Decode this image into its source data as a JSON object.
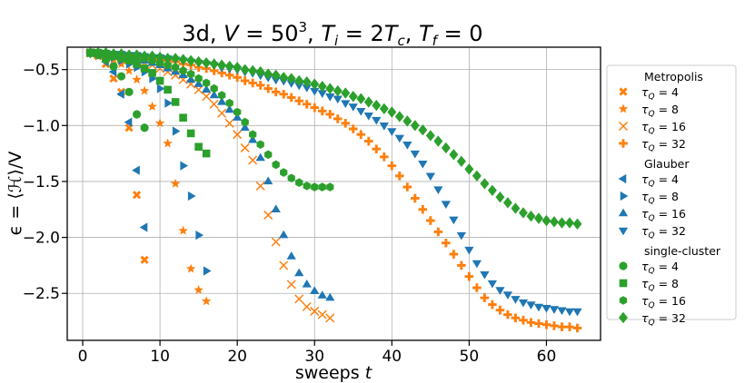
{
  "colors": {
    "metropolis": "#ff7f0e",
    "glauber": "#1f77b4",
    "cluster": "#2ca02c",
    "grid": "#b0b0b0"
  },
  "chart_data": {
    "type": "scatter",
    "title": "3d, V = 50³, Tᵢ = 2T꜀, T_f = 0",
    "title_parts": {
      "dim": "3d, ",
      "V": "V",
      "eq1": " = 50",
      "sup3": "3",
      "sep1": ", ",
      "T1": "T",
      "i": "i",
      "eq2": " = 2",
      "T2": "T",
      "c": "c",
      "sep2": ", ",
      "T3": "T",
      "f": "f",
      "eq3": " = 0"
    },
    "xlabel": "sweeps t",
    "xlabel_parts": {
      "word": "sweeps ",
      "t": "t"
    },
    "ylabel": "ϵ = ⟨ℋ⟩/V",
    "xlim": [
      -2,
      67
    ],
    "ylim": [
      -2.92,
      -0.3
    ],
    "xticks": [
      0,
      10,
      20,
      30,
      40,
      50,
      60
    ],
    "xtick_labels": [
      "0",
      "10",
      "20",
      "30",
      "40",
      "50",
      "60"
    ],
    "yticks": [
      -2.5,
      -2.0,
      -1.5,
      -1.0,
      -0.5
    ],
    "ytick_labels": [
      "−2.5",
      "−2.0",
      "−1.5",
      "−1.0",
      "−0.5"
    ],
    "grid": true,
    "legend_position": "right, outside plot",
    "legend": [
      {
        "header": "Metropolis",
        "entries": [
          {
            "label": "τ_Q = 4",
            "marker": "X",
            "color_key": "metropolis"
          },
          {
            "label": "τ_Q = 8",
            "marker": "star",
            "color_key": "metropolis"
          },
          {
            "label": "τ_Q = 16",
            "marker": "x",
            "color_key": "metropolis"
          },
          {
            "label": "τ_Q = 32",
            "marker": "plus",
            "color_key": "metropolis"
          }
        ]
      },
      {
        "header": "Glauber",
        "entries": [
          {
            "label": "τ_Q = 4",
            "marker": "tri-left",
            "color_key": "glauber"
          },
          {
            "label": "τ_Q = 8",
            "marker": "tri-right",
            "color_key": "glauber"
          },
          {
            "label": "τ_Q = 16",
            "marker": "tri-up",
            "color_key": "glauber"
          },
          {
            "label": "τ_Q = 32",
            "marker": "tri-down",
            "color_key": "glauber"
          }
        ]
      },
      {
        "header": "single-cluster",
        "entries": [
          {
            "label": "τ_Q = 4",
            "marker": "circle",
            "color_key": "cluster"
          },
          {
            "label": "τ_Q = 8",
            "marker": "square",
            "color_key": "cluster"
          },
          {
            "label": "τ_Q = 16",
            "marker": "hexagon",
            "color_key": "cluster"
          },
          {
            "label": "τ_Q = 32",
            "marker": "diamond",
            "color_key": "cluster"
          }
        ]
      }
    ],
    "series": [
      {
        "name": "Metropolis τ_Q = 4",
        "marker": "X",
        "color_key": "metropolis",
        "x": [
          1,
          2,
          3,
          4,
          5,
          6,
          7,
          8
        ],
        "y": [
          -0.35,
          -0.38,
          -0.45,
          -0.58,
          -0.7,
          -1.02,
          -1.62,
          -2.2
        ]
      },
      {
        "name": "Metropolis τ_Q = 8",
        "marker": "star",
        "color_key": "metropolis",
        "x": [
          1,
          2,
          3,
          4,
          5,
          6,
          7,
          8,
          9,
          10,
          11,
          12,
          13,
          14,
          15,
          16
        ],
        "y": [
          -0.35,
          -0.36,
          -0.38,
          -0.41,
          -0.45,
          -0.51,
          -0.59,
          -0.69,
          -0.83,
          -0.98,
          -1.16,
          -1.52,
          -1.94,
          -2.28,
          -2.47,
          -2.57
        ]
      },
      {
        "name": "Metropolis τ_Q = 16",
        "marker": "x",
        "color_key": "metropolis",
        "x": [
          1,
          2,
          3,
          4,
          5,
          6,
          7,
          8,
          9,
          10,
          11,
          12,
          13,
          14,
          15,
          16,
          17,
          18,
          19,
          20,
          21,
          22,
          23,
          24,
          25,
          26,
          27,
          28,
          29,
          30,
          31,
          32
        ],
        "y": [
          -0.35,
          -0.36,
          -0.37,
          -0.38,
          -0.39,
          -0.4,
          -0.42,
          -0.44,
          -0.46,
          -0.49,
          -0.52,
          -0.55,
          -0.59,
          -0.63,
          -0.68,
          -0.74,
          -0.81,
          -0.89,
          -0.98,
          -1.08,
          -1.2,
          -1.31,
          -1.54,
          -1.8,
          -2.04,
          -2.25,
          -2.42,
          -2.55,
          -2.62,
          -2.66,
          -2.69,
          -2.72
        ]
      },
      {
        "name": "Metropolis τ_Q = 32",
        "marker": "plus",
        "color_key": "metropolis",
        "x": [
          1,
          2,
          3,
          4,
          5,
          6,
          7,
          8,
          9,
          10,
          11,
          12,
          13,
          14,
          15,
          16,
          17,
          18,
          19,
          20,
          21,
          22,
          23,
          24,
          25,
          26,
          27,
          28,
          29,
          30,
          31,
          32,
          33,
          34,
          35,
          36,
          37,
          38,
          39,
          40,
          41,
          42,
          43,
          44,
          45,
          46,
          47,
          48,
          49,
          50,
          51,
          52,
          53,
          54,
          55,
          56,
          57,
          58,
          59,
          60,
          61,
          62,
          63,
          64
        ],
        "y": [
          -0.35,
          -0.35,
          -0.36,
          -0.36,
          -0.37,
          -0.37,
          -0.38,
          -0.39,
          -0.4,
          -0.41,
          -0.42,
          -0.43,
          -0.45,
          -0.46,
          -0.48,
          -0.49,
          -0.51,
          -0.53,
          -0.55,
          -0.57,
          -0.6,
          -0.62,
          -0.64,
          -0.67,
          -0.7,
          -0.72,
          -0.75,
          -0.78,
          -0.81,
          -0.84,
          -0.87,
          -0.9,
          -0.94,
          -0.98,
          -1.03,
          -1.08,
          -1.14,
          -1.21,
          -1.28,
          -1.36,
          -1.45,
          -1.55,
          -1.65,
          -1.75,
          -1.85,
          -1.95,
          -2.05,
          -2.15,
          -2.25,
          -2.35,
          -2.45,
          -2.54,
          -2.6,
          -2.65,
          -2.69,
          -2.72,
          -2.74,
          -2.76,
          -2.77,
          -2.78,
          -2.79,
          -2.8,
          -2.8,
          -2.81
        ]
      },
      {
        "name": "Glauber τ_Q = 4",
        "marker": "tri-left",
        "color_key": "glauber",
        "x": [
          1,
          2,
          3,
          4,
          5,
          6,
          7,
          8
        ],
        "y": [
          -0.35,
          -0.37,
          -0.43,
          -0.52,
          -0.72,
          -0.97,
          -1.4,
          -1.91
        ]
      },
      {
        "name": "Glauber τ_Q = 8",
        "marker": "tri-right",
        "color_key": "glauber",
        "x": [
          1,
          2,
          3,
          4,
          5,
          6,
          7,
          8,
          9,
          10,
          11,
          12,
          13,
          14,
          15,
          16
        ],
        "y": [
          -0.35,
          -0.36,
          -0.37,
          -0.39,
          -0.42,
          -0.45,
          -0.48,
          -0.52,
          -0.58,
          -0.67,
          -0.8,
          -1.05,
          -1.36,
          -1.63,
          -1.98,
          -2.3
        ]
      },
      {
        "name": "Glauber τ_Q = 16",
        "marker": "tri-up",
        "color_key": "glauber",
        "x": [
          1,
          2,
          3,
          4,
          5,
          6,
          7,
          8,
          9,
          10,
          11,
          12,
          13,
          14,
          15,
          16,
          17,
          18,
          19,
          20,
          21,
          22,
          23,
          24,
          25,
          26,
          27,
          28,
          29,
          30,
          31,
          32
        ],
        "y": [
          -0.35,
          -0.35,
          -0.36,
          -0.37,
          -0.38,
          -0.39,
          -0.4,
          -0.42,
          -0.44,
          -0.46,
          -0.49,
          -0.52,
          -0.55,
          -0.59,
          -0.63,
          -0.68,
          -0.73,
          -0.79,
          -0.86,
          -0.93,
          -1.02,
          -1.13,
          -1.29,
          -1.5,
          -1.75,
          -1.98,
          -2.17,
          -2.32,
          -2.42,
          -2.48,
          -2.52,
          -2.54
        ]
      },
      {
        "name": "Glauber τ_Q = 32",
        "marker": "tri-down",
        "color_key": "glauber",
        "x": [
          1,
          2,
          3,
          4,
          5,
          6,
          7,
          8,
          9,
          10,
          11,
          12,
          13,
          14,
          15,
          16,
          17,
          18,
          19,
          20,
          21,
          22,
          23,
          24,
          25,
          26,
          27,
          28,
          29,
          30,
          31,
          32,
          33,
          34,
          35,
          36,
          37,
          38,
          39,
          40,
          41,
          42,
          43,
          44,
          45,
          46,
          47,
          48,
          49,
          50,
          51,
          52,
          53,
          54,
          55,
          56,
          57,
          58,
          59,
          60,
          61,
          62,
          63,
          64
        ],
        "y": [
          -0.35,
          -0.35,
          -0.35,
          -0.36,
          -0.36,
          -0.37,
          -0.37,
          -0.38,
          -0.39,
          -0.39,
          -0.4,
          -0.41,
          -0.42,
          -0.43,
          -0.44,
          -0.45,
          -0.46,
          -0.48,
          -0.49,
          -0.5,
          -0.52,
          -0.53,
          -0.55,
          -0.57,
          -0.59,
          -0.6,
          -0.62,
          -0.64,
          -0.66,
          -0.69,
          -0.71,
          -0.74,
          -0.76,
          -0.8,
          -0.83,
          -0.87,
          -0.91,
          -0.95,
          -1.0,
          -1.05,
          -1.11,
          -1.17,
          -1.25,
          -1.34,
          -1.45,
          -1.57,
          -1.7,
          -1.84,
          -1.98,
          -2.11,
          -2.23,
          -2.33,
          -2.41,
          -2.47,
          -2.51,
          -2.55,
          -2.58,
          -2.6,
          -2.62,
          -2.63,
          -2.64,
          -2.65,
          -2.66,
          -2.66
        ]
      },
      {
        "name": "single-cluster τ_Q = 4",
        "marker": "circle",
        "color_key": "cluster",
        "x": [
          1,
          2,
          3,
          4,
          5,
          6,
          7,
          8
        ],
        "y": [
          -0.35,
          -0.37,
          -0.41,
          -0.47,
          -0.56,
          -0.7,
          -0.9,
          -1.02
        ]
      },
      {
        "name": "single-cluster τ_Q = 8",
        "marker": "square",
        "color_key": "cluster",
        "x": [
          1,
          2,
          3,
          4,
          5,
          6,
          7,
          8,
          9,
          10,
          11,
          12,
          13,
          14,
          15,
          16
        ],
        "y": [
          -0.35,
          -0.35,
          -0.36,
          -0.38,
          -0.4,
          -0.42,
          -0.45,
          -0.49,
          -0.53,
          -0.6,
          -0.68,
          -0.79,
          -0.93,
          -1.07,
          -1.19,
          -1.25
        ]
      },
      {
        "name": "single-cluster τ_Q = 16",
        "marker": "hexagon",
        "color_key": "cluster",
        "x": [
          1,
          2,
          3,
          4,
          5,
          6,
          7,
          8,
          9,
          10,
          11,
          12,
          13,
          14,
          15,
          16,
          17,
          18,
          19,
          20,
          21,
          22,
          23,
          24,
          25,
          26,
          27,
          28,
          29,
          30,
          31,
          32
        ],
        "y": [
          -0.35,
          -0.35,
          -0.36,
          -0.36,
          -0.37,
          -0.38,
          -0.39,
          -0.4,
          -0.42,
          -0.44,
          -0.46,
          -0.48,
          -0.51,
          -0.54,
          -0.58,
          -0.62,
          -0.67,
          -0.73,
          -0.8,
          -0.88,
          -0.97,
          -1.08,
          -1.17,
          -1.26,
          -1.35,
          -1.42,
          -1.47,
          -1.51,
          -1.54,
          -1.55,
          -1.55,
          -1.55
        ]
      },
      {
        "name": "single-cluster τ_Q = 32",
        "marker": "diamond",
        "color_key": "cluster",
        "x": [
          1,
          2,
          3,
          4,
          5,
          6,
          7,
          8,
          9,
          10,
          11,
          12,
          13,
          14,
          15,
          16,
          17,
          18,
          19,
          20,
          21,
          22,
          23,
          24,
          25,
          26,
          27,
          28,
          29,
          30,
          31,
          32,
          33,
          34,
          35,
          36,
          37,
          38,
          39,
          40,
          41,
          42,
          43,
          44,
          45,
          46,
          47,
          48,
          49,
          50,
          51,
          52,
          53,
          54,
          55,
          56,
          57,
          58,
          59,
          60,
          61,
          62,
          63,
          64
        ],
        "y": [
          -0.35,
          -0.35,
          -0.35,
          -0.36,
          -0.36,
          -0.37,
          -0.37,
          -0.38,
          -0.38,
          -0.39,
          -0.4,
          -0.4,
          -0.41,
          -0.42,
          -0.43,
          -0.44,
          -0.45,
          -0.46,
          -0.47,
          -0.48,
          -0.5,
          -0.51,
          -0.52,
          -0.54,
          -0.55,
          -0.57,
          -0.58,
          -0.6,
          -0.61,
          -0.63,
          -0.65,
          -0.67,
          -0.69,
          -0.71,
          -0.74,
          -0.76,
          -0.79,
          -0.82,
          -0.85,
          -0.88,
          -0.92,
          -0.96,
          -1.0,
          -1.04,
          -1.09,
          -1.14,
          -1.2,
          -1.26,
          -1.32,
          -1.39,
          -1.45,
          -1.52,
          -1.58,
          -1.64,
          -1.69,
          -1.74,
          -1.78,
          -1.81,
          -1.83,
          -1.85,
          -1.86,
          -1.87,
          -1.87,
          -1.88
        ]
      }
    ]
  }
}
